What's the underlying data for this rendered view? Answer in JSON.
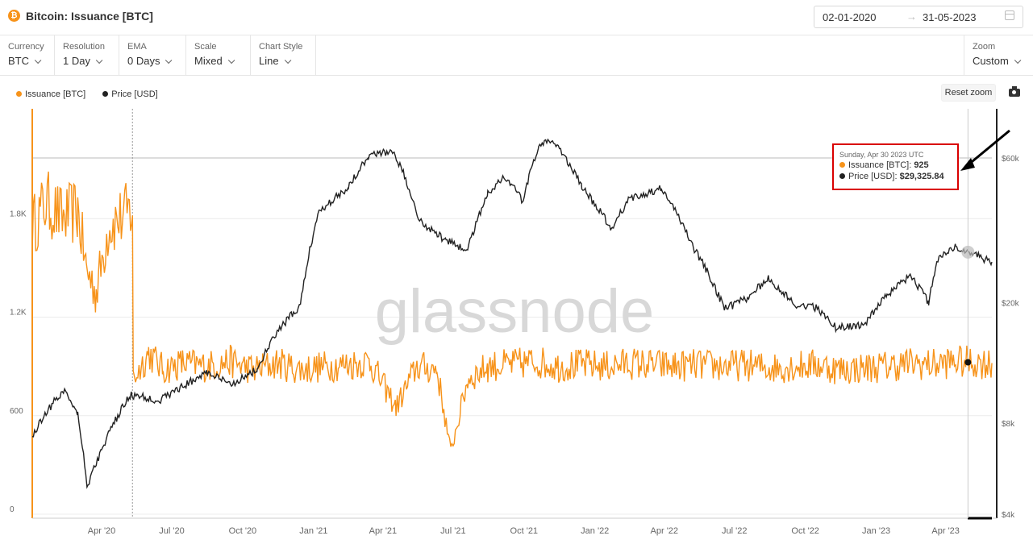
{
  "header": {
    "coin_symbol": "₿",
    "title": "Bitcoin: Issuance [BTC]",
    "date_start": "02-01-2020",
    "date_arrow": "→",
    "date_end": "31-05-2023"
  },
  "controls": [
    {
      "label": "Currency",
      "value": "BTC"
    },
    {
      "label": "Resolution",
      "value": "1 Day"
    },
    {
      "label": "EMA",
      "value": "0 Days"
    },
    {
      "label": "Scale",
      "value": "Mixed"
    },
    {
      "label": "Chart Style",
      "value": "Line"
    }
  ],
  "zoom": {
    "label": "Zoom",
    "value": "Custom"
  },
  "toolbar": {
    "reset_zoom": "Reset zoom"
  },
  "watermark": "glassnode",
  "tooltip": {
    "date": "Sunday, Apr 30 2023 UTC",
    "issuance_label": "Issuance [BTC]: ",
    "issuance_value": "925",
    "price_label": "Price [USD]: ",
    "price_value": "$29,325.84"
  },
  "chart_data": {
    "type": "line",
    "x_range": [
      "2020-01-02",
      "2023-05-31"
    ],
    "x_tick_labels": [
      "Apr '20",
      "Jul '20",
      "Oct '20",
      "Jan '21",
      "Apr '21",
      "Jul '21",
      "Oct '21",
      "Jan '22",
      "Apr '22",
      "Jul '22",
      "Oct '22",
      "Jan '23",
      "Apr '23"
    ],
    "y_left": {
      "label": "",
      "ticks": [
        "0",
        "600",
        "1.2K",
        "1.8K"
      ],
      "range": [
        0,
        2400
      ]
    },
    "y_right": {
      "label": "",
      "scale": "log",
      "ticks": [
        "$4k",
        "$8k",
        "$20k",
        "$60k"
      ],
      "range": [
        4000,
        80000
      ]
    },
    "legend_position": "top-left",
    "grid": true,
    "colors": {
      "issuance": "#f7931a",
      "price": "#222222",
      "highlight": "#d90000"
    },
    "series": [
      {
        "name": "Issuance [BTC]",
        "axis": "left",
        "color": "#f7931a",
        "points": [
          [
            "2020-01-02",
            1750
          ],
          [
            "2020-01-20",
            1900
          ],
          [
            "2020-02-10",
            1800
          ],
          [
            "2020-03-01",
            1850
          ],
          [
            "2020-03-12",
            1500
          ],
          [
            "2020-03-25",
            1350
          ],
          [
            "2020-04-10",
            1750
          ],
          [
            "2020-04-25",
            1800
          ],
          [
            "2020-05-11",
            1850
          ],
          [
            "2020-05-12",
            820
          ],
          [
            "2020-06-01",
            980
          ],
          [
            "2020-06-20",
            880
          ],
          [
            "2020-07-15",
            920
          ],
          [
            "2020-08-15",
            900
          ],
          [
            "2020-09-15",
            930
          ],
          [
            "2020-10-15",
            880
          ],
          [
            "2020-11-15",
            920
          ],
          [
            "2020-12-15",
            880
          ],
          [
            "2021-01-15",
            900
          ],
          [
            "2021-02-15",
            910
          ],
          [
            "2021-03-15",
            930
          ],
          [
            "2021-04-18",
            650
          ],
          [
            "2021-05-15",
            900
          ],
          [
            "2021-06-10",
            880
          ],
          [
            "2021-06-28",
            380
          ],
          [
            "2021-07-20",
            820
          ],
          [
            "2021-08-15",
            900
          ],
          [
            "2021-09-15",
            910
          ],
          [
            "2021-10-15",
            930
          ],
          [
            "2021-11-15",
            900
          ],
          [
            "2021-12-15",
            910
          ],
          [
            "2022-01-15",
            900
          ],
          [
            "2022-02-15",
            920
          ],
          [
            "2022-03-15",
            910
          ],
          [
            "2022-04-15",
            900
          ],
          [
            "2022-05-15",
            910
          ],
          [
            "2022-06-15",
            900
          ],
          [
            "2022-07-15",
            910
          ],
          [
            "2022-08-15",
            890
          ],
          [
            "2022-09-15",
            900
          ],
          [
            "2022-10-15",
            910
          ],
          [
            "2022-11-15",
            880
          ],
          [
            "2022-12-15",
            890
          ],
          [
            "2023-01-15",
            900
          ],
          [
            "2023-02-15",
            920
          ],
          [
            "2023-03-15",
            910
          ],
          [
            "2023-04-15",
            930
          ],
          [
            "2023-04-30",
            925
          ],
          [
            "2023-05-31",
            920
          ]
        ]
      },
      {
        "name": "Price [USD]",
        "axis": "right",
        "color": "#222222",
        "points": [
          [
            "2020-01-02",
            7200
          ],
          [
            "2020-01-20",
            8700
          ],
          [
            "2020-02-13",
            10300
          ],
          [
            "2020-03-01",
            8600
          ],
          [
            "2020-03-13",
            4900
          ],
          [
            "2020-04-01",
            6500
          ],
          [
            "2020-05-08",
            9900
          ],
          [
            "2020-06-15",
            9500
          ],
          [
            "2020-07-27",
            11000
          ],
          [
            "2020-08-15",
            11800
          ],
          [
            "2020-09-15",
            10700
          ],
          [
            "2020-10-20",
            12000
          ],
          [
            "2020-11-15",
            16000
          ],
          [
            "2020-12-15",
            19500
          ],
          [
            "2021-01-08",
            40000
          ],
          [
            "2021-02-15",
            48000
          ],
          [
            "2021-03-13",
            61000
          ],
          [
            "2021-04-14",
            63500
          ],
          [
            "2021-05-19",
            37000
          ],
          [
            "2021-06-22",
            32000
          ],
          [
            "2021-07-20",
            29800
          ],
          [
            "2021-08-15",
            46000
          ],
          [
            "2021-09-07",
            52000
          ],
          [
            "2021-09-30",
            43000
          ],
          [
            "2021-10-20",
            66000
          ],
          [
            "2021-11-10",
            68000
          ],
          [
            "2021-12-15",
            48000
          ],
          [
            "2022-01-22",
            35000
          ],
          [
            "2022-02-15",
            44000
          ],
          [
            "2022-03-28",
            47500
          ],
          [
            "2022-05-10",
            30000
          ],
          [
            "2022-06-18",
            19000
          ],
          [
            "2022-07-15",
            20500
          ],
          [
            "2022-08-15",
            24000
          ],
          [
            "2022-09-15",
            19800
          ],
          [
            "2022-10-15",
            19200
          ],
          [
            "2022-11-10",
            16500
          ],
          [
            "2022-12-15",
            16800
          ],
          [
            "2023-01-15",
            21000
          ],
          [
            "2023-02-15",
            24500
          ],
          [
            "2023-03-10",
            20000
          ],
          [
            "2023-03-22",
            28000
          ],
          [
            "2023-04-14",
            30500
          ],
          [
            "2023-04-30",
            29325.84
          ],
          [
            "2023-05-31",
            27200
          ]
        ]
      }
    ],
    "annotations": {
      "vertical_marker": "2020-05-11",
      "crosshair": "2023-04-30",
      "reference_line_price": 60000
    }
  }
}
